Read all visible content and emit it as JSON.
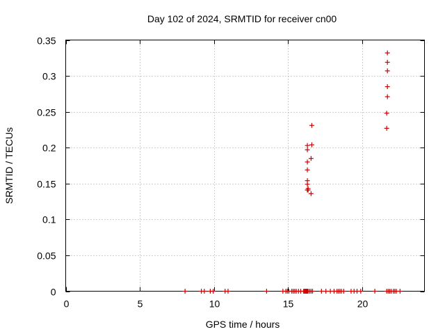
{
  "chart_data": {
    "type": "scatter",
    "title": "Day 102 of 2024, SRMTID for receiver cn00",
    "xlabel": "GPS time / hours",
    "ylabel": "SRMTID / TECUs",
    "xlim": [
      0,
      24.2
    ],
    "ylim": [
      0,
      0.35
    ],
    "grid": true,
    "marker": "+",
    "marker_color": "#cc0000",
    "x_ticks": [
      0,
      5,
      10,
      15,
      20
    ],
    "x_tick_labels": [
      "0",
      "5",
      "10",
      "15",
      "20"
    ],
    "y_ticks": [
      0,
      0.05,
      0.1,
      0.15,
      0.2,
      0.25,
      0.3,
      0.35
    ],
    "y_tick_labels": [
      "0",
      "0.05",
      "0.1",
      "0.15",
      "0.2",
      "0.25",
      "0.3",
      "0.35"
    ],
    "series": [
      {
        "name": "SRMTID",
        "x": [
          8.05,
          9.15,
          9.35,
          9.75,
          9.95,
          10.75,
          10.95,
          13.55,
          14.65,
          14.85,
          14.95,
          15.05,
          15.25,
          15.35,
          15.45,
          15.55,
          15.7,
          15.85,
          16.05,
          16.1,
          16.15,
          16.2,
          16.25,
          16.3,
          16.35,
          16.45,
          16.55,
          16.65,
          17.25,
          17.55,
          17.85,
          18.1,
          18.3,
          18.4,
          18.5,
          18.6,
          18.75,
          19.25,
          19.45,
          19.65,
          19.9,
          20.85,
          21.65,
          21.75,
          21.85,
          21.95,
          22.1,
          22.2,
          22.3,
          22.55,
          16.3,
          16.3,
          16.3,
          16.3,
          16.3,
          16.3,
          16.3,
          16.35,
          16.35,
          16.55,
          16.55,
          16.6,
          16.6,
          21.65,
          21.65,
          21.7,
          21.7,
          21.7,
          21.7,
          21.7
        ],
        "y": [
          0,
          0,
          0,
          0,
          0,
          0,
          0,
          0,
          0,
          0,
          0,
          0,
          0,
          0,
          0,
          0,
          0,
          0,
          0,
          0,
          0,
          0,
          0,
          0,
          0,
          0,
          0,
          0,
          0,
          0,
          0,
          0,
          0,
          0,
          0,
          0,
          0,
          0,
          0,
          0,
          0,
          0,
          0,
          0,
          0,
          0,
          0,
          0,
          0,
          0,
          0.203,
          0.197,
          0.18,
          0.169,
          0.154,
          0.149,
          0.141,
          0.141,
          0.143,
          0.136,
          0.185,
          0.204,
          0.231,
          0.227,
          0.248,
          0.271,
          0.285,
          0.307,
          0.319,
          0.332
        ]
      }
    ]
  }
}
